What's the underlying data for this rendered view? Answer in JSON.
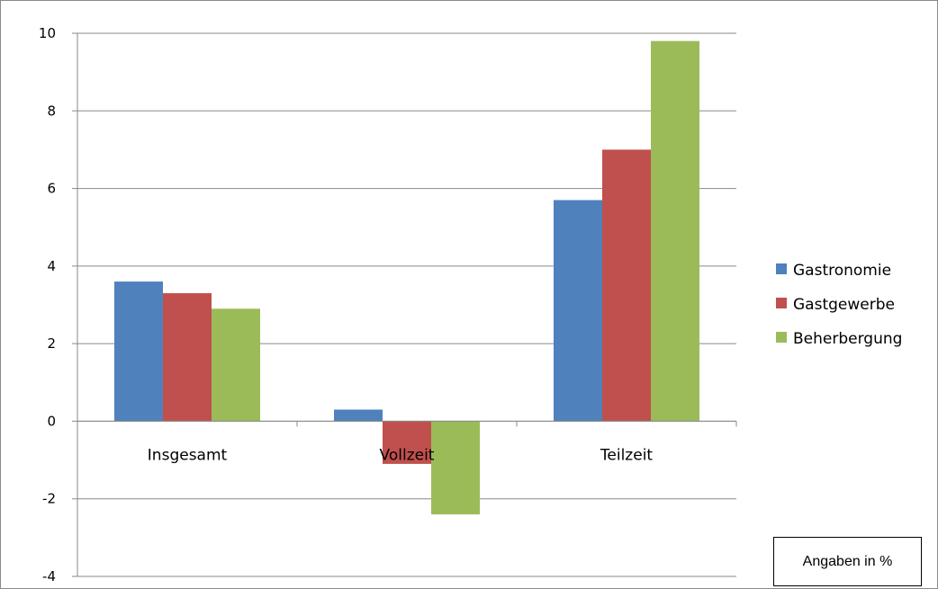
{
  "chart_data": {
    "type": "bar",
    "categories": [
      "Insgesamt",
      "Vollzeit",
      "Teilzeit"
    ],
    "series": [
      {
        "name": "Gastronomie",
        "values": [
          3.6,
          0.3,
          5.7
        ],
        "color": "#4f81bd"
      },
      {
        "name": "Gastgewerbe",
        "values": [
          3.3,
          -1.1,
          7.0
        ],
        "color": "#c0504d"
      },
      {
        "name": "Beherbergung",
        "values": [
          2.9,
          -2.4,
          9.8
        ],
        "color": "#9bbb59"
      }
    ],
    "ylim": [
      -4,
      10
    ],
    "yticks": [
      -4,
      -2,
      0,
      2,
      4,
      6,
      8,
      10
    ],
    "grid": true,
    "legend_position": "right",
    "annotation": "Angaben in %"
  }
}
